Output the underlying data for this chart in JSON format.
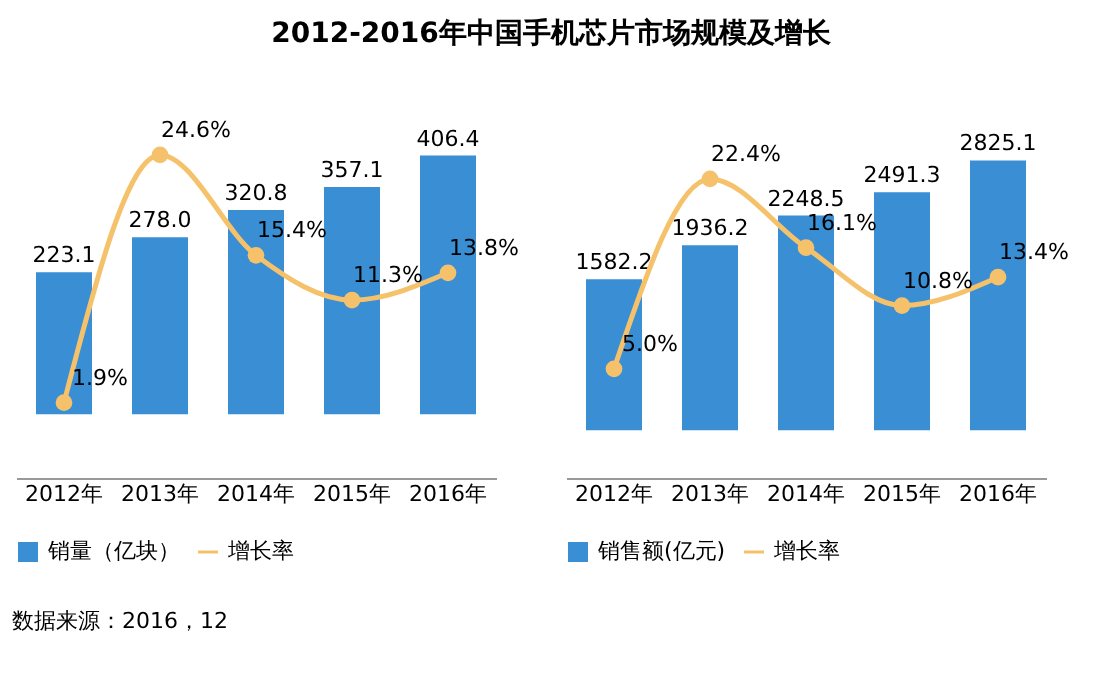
{
  "chart_data": [
    {
      "type": "bar",
      "title": "2012-2016年中国手机芯片市场规模及增长",
      "categories": [
        "2012年",
        "2013年",
        "2014年",
        "2015年",
        "2016年"
      ],
      "tick_labels": "x",
      "legend": "bottom",
      "marker": "circle",
      "line_style": "solid",
      "annotations": [
        "数据来源：2016，12"
      ],
      "series": [
        {
          "name": "销量（亿块）",
          "color": "#3a8ed4",
          "values": [
            223.1,
            278.0,
            320.8,
            357.1,
            406.4
          ],
          "value_labels": [
            "223.1",
            "278.0",
            "320.8",
            "357.1",
            "406.4"
          ]
        },
        {
          "type": "line",
          "name": "增长率",
          "color": "#f5c26b",
          "axis": "y2",
          "values": [
            1.9,
            24.6,
            15.4,
            11.3,
            13.8
          ],
          "value_labels": [
            "1.9%",
            "24.6%",
            "15.4%",
            "11.3%",
            "13.8%"
          ]
        }
      ]
    },
    {
      "type": "bar",
      "categories": [
        "2012年",
        "2013年",
        "2014年",
        "2015年",
        "2016年"
      ],
      "tick_labels": "x",
      "legend": "bottom",
      "marker": "circle",
      "line_style": "solid",
      "series": [
        {
          "name": "销售额(亿元)",
          "color": "#3a8ed4",
          "values": [
            1582.2,
            1936.2,
            2248.5,
            2491.3,
            2825.1
          ],
          "value_labels": [
            "1582.2",
            "1936.2",
            "2248.5",
            "2491.3",
            "2825.1"
          ]
        },
        {
          "type": "line",
          "name": "增长率",
          "color": "#f5c26b",
          "axis": "y2",
          "values": [
            5.0,
            22.4,
            16.1,
            10.8,
            13.4
          ],
          "value_labels": [
            "5.0%",
            "22.4%",
            "16.1%",
            "10.8%",
            "13.4%"
          ]
        }
      ]
    }
  ]
}
